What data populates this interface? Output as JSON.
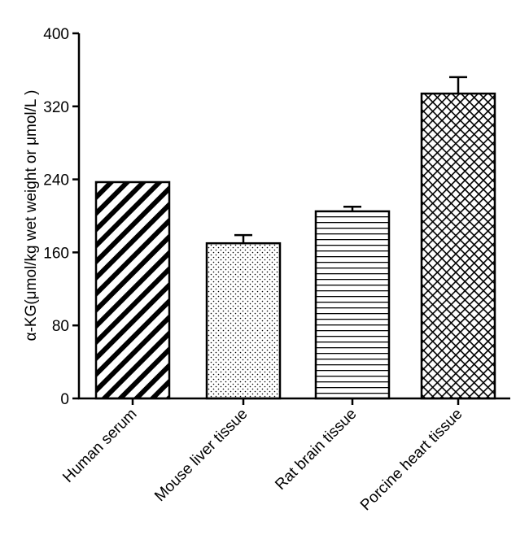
{
  "chart_data": {
    "type": "bar",
    "title": "",
    "xlabel": "",
    "ylabel": "α-KG(μmol/kg wet weight or μmol/L )",
    "ylim": [
      0,
      400
    ],
    "yticks": [
      "0",
      "80",
      "160",
      "240",
      "320",
      "400"
    ],
    "grid": false,
    "categories": [
      "Human serum",
      "Mouse liver tissue",
      "Rat brain tissue",
      "Porcine heart tissue"
    ],
    "values": [
      237,
      170,
      205,
      334
    ],
    "errors": [
      0,
      9,
      5,
      18
    ],
    "patterns": [
      "diagonal-stripes",
      "dots",
      "horizontal-lines",
      "crosshatch"
    ]
  }
}
